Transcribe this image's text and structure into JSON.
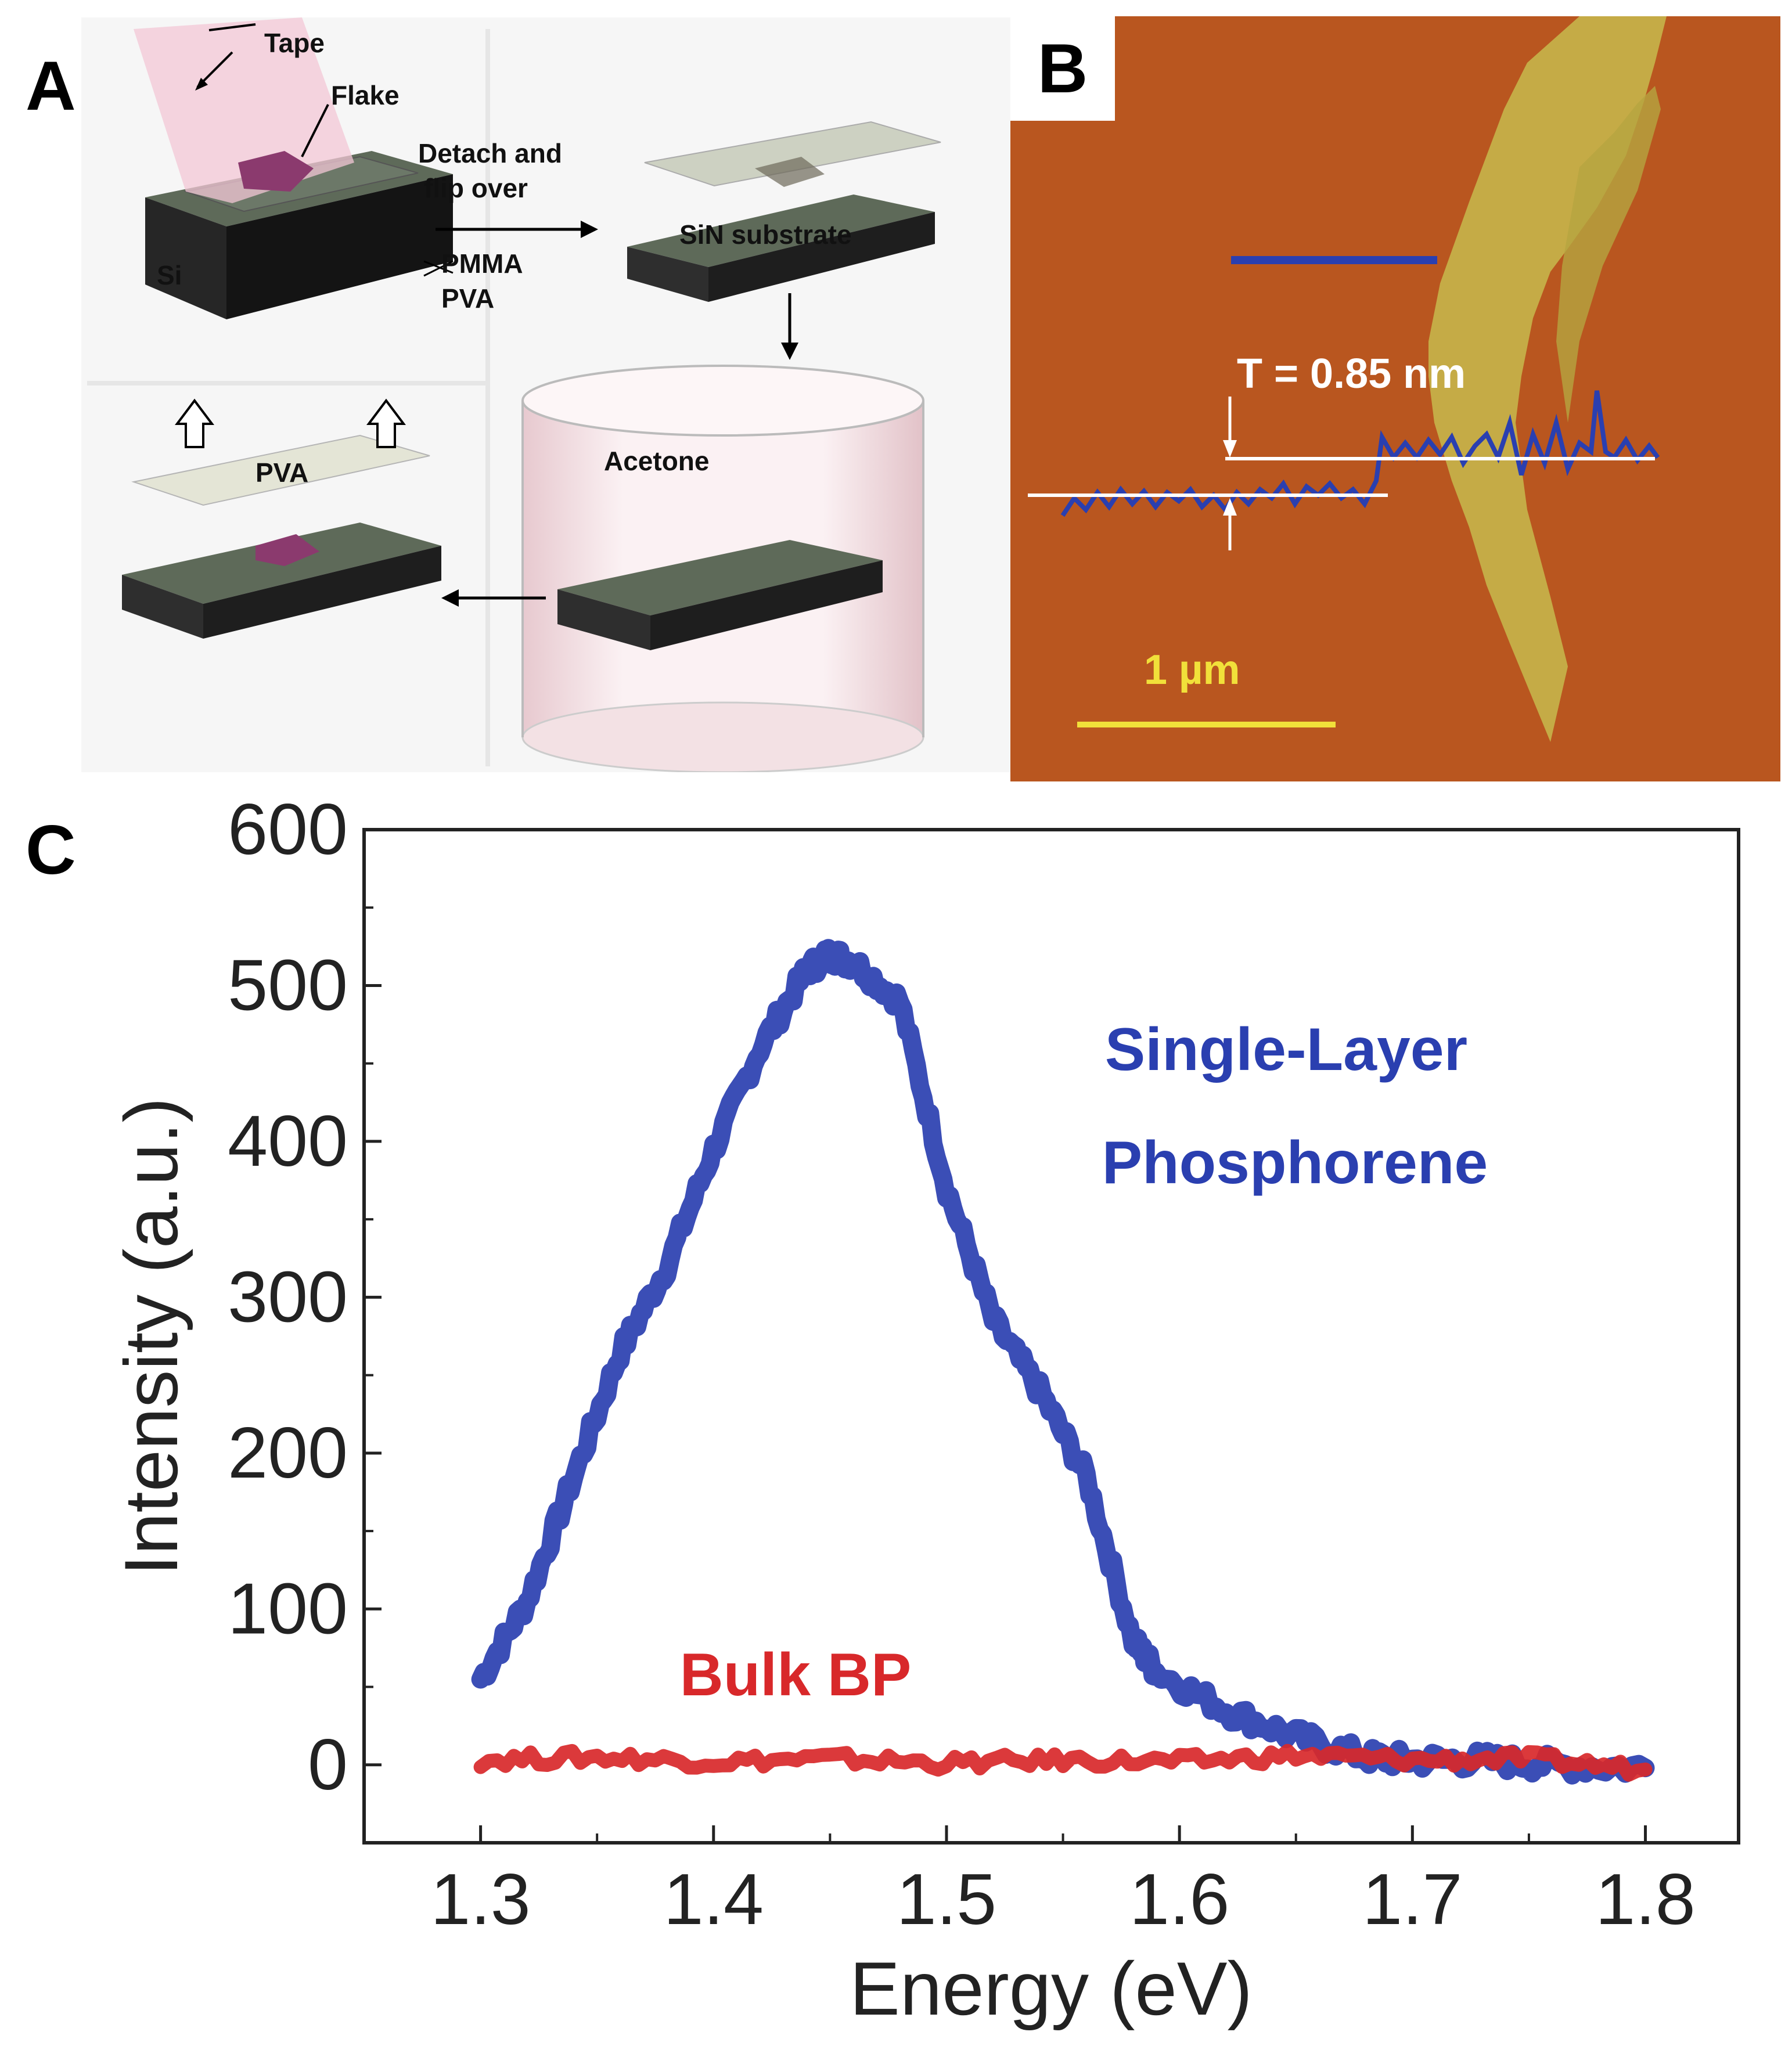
{
  "panel_labels": {
    "a": "A",
    "b": "B",
    "c": "C"
  },
  "panel_a": {
    "tape": "Tape",
    "flake": "Flake",
    "si": "Si",
    "pmma": "PMMA",
    "pva": "PVA",
    "detach_line1": "Detach and",
    "detach_line2": "flip over",
    "sin_substrate": "SiN substrate",
    "acetone": "Acetone",
    "pva_bottom": "PVA"
  },
  "panel_b": {
    "thickness": "T = 0.85 nm",
    "scale_bar": "1 µm"
  },
  "colors": {
    "single_layer": "#2a3fb0",
    "bulk": "#d8282a",
    "afm_bg": "#b9561f",
    "flake": "#c7b54a"
  },
  "chart_data": {
    "type": "line",
    "xlabel": "Energy (eV)",
    "ylabel": "Intensity (a.u.)",
    "xlim": [
      1.25,
      1.84
    ],
    "ylim": [
      -50,
      600
    ],
    "xticks": [
      "1.3",
      "1.4",
      "1.5",
      "1.6",
      "1.7",
      "1.8"
    ],
    "yticks": [
      "0",
      "100",
      "200",
      "300",
      "400",
      "500",
      "600"
    ],
    "annotations": {
      "single_line1": "Single-Layer",
      "single_line2": "Phosphorene",
      "bulk": "Bulk BP"
    },
    "series": [
      {
        "name": "Single-Layer Phosphorene",
        "color": "#2a3fb0",
        "x": [
          1.3,
          1.32,
          1.34,
          1.36,
          1.38,
          1.4,
          1.42,
          1.44,
          1.45,
          1.46,
          1.48,
          1.5,
          1.52,
          1.54,
          1.56,
          1.58,
          1.59,
          1.62,
          1.65,
          1.68,
          1.7,
          1.73,
          1.76,
          1.8
        ],
        "values": [
          55,
          105,
          185,
          265,
          320,
          395,
          460,
          510,
          520,
          515,
          490,
          370,
          285,
          240,
          185,
          80,
          60,
          35,
          18,
          5,
          3,
          3,
          0,
          -2
        ]
      },
      {
        "name": "Bulk BP",
        "color": "#d8282a",
        "x": [
          1.3,
          1.35,
          1.4,
          1.45,
          1.5,
          1.55,
          1.6,
          1.65,
          1.7,
          1.75,
          1.8
        ],
        "values": [
          3,
          5,
          2,
          4,
          1,
          3,
          2,
          6,
          3,
          4,
          -3
        ]
      }
    ]
  }
}
